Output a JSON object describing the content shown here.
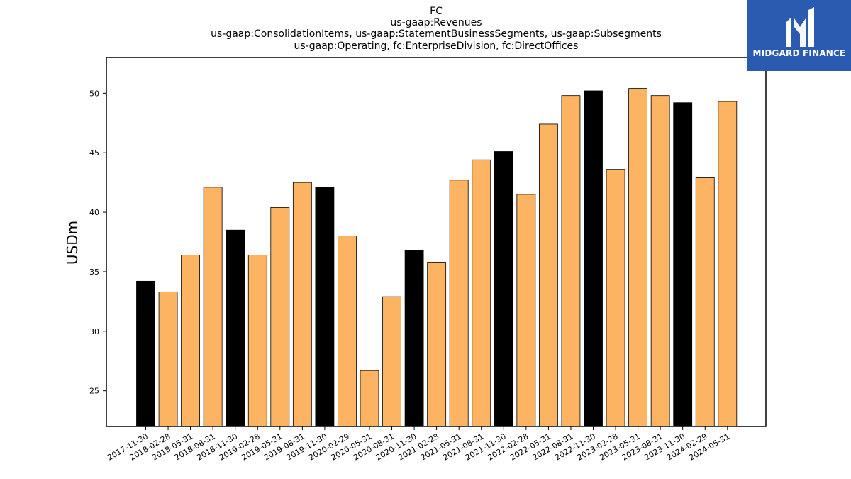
{
  "logo": {
    "text": "MIDGARD FINANCE",
    "color": "#2a5bb0"
  },
  "chart_data": {
    "type": "bar",
    "title_lines": [
      "FC",
      "us-gaap:Revenues",
      "us-gaap:ConsolidationItems, us-gaap:StatementBusinessSegments, us-gaap:Subsegments",
      "us-gaap:Operating, fc:EnterpriseDivision, fc:DirectOffices"
    ],
    "ylabel": "USDm",
    "xlabel": "",
    "ylim": [
      22,
      53
    ],
    "yticks": [
      25,
      30,
      35,
      40,
      45,
      50
    ],
    "categories": [
      "2017-11-30",
      "2018-02-28",
      "2018-05-31",
      "2018-08-31",
      "2018-11-30",
      "2019-02-28",
      "2019-05-31",
      "2019-08-31",
      "2019-11-30",
      "2020-02-29",
      "2020-05-31",
      "2020-08-31",
      "2020-11-30",
      "2021-02-28",
      "2021-05-31",
      "2021-08-31",
      "2021-11-30",
      "2022-02-28",
      "2022-05-31",
      "2022-08-31",
      "2022-11-30",
      "2023-02-28",
      "2023-05-31",
      "2023-08-31",
      "2023-11-30",
      "2024-02-29",
      "2024-05-31"
    ],
    "values": [
      34.2,
      33.3,
      36.4,
      42.1,
      38.5,
      36.4,
      40.4,
      42.5,
      42.1,
      38.0,
      26.7,
      32.9,
      36.8,
      35.8,
      42.7,
      44.4,
      45.1,
      41.5,
      47.4,
      49.8,
      50.2,
      43.6,
      50.4,
      49.8,
      49.2,
      42.9,
      49.3
    ],
    "bar_colors": {
      "year_end": "#000000",
      "quarter": "#fdb462"
    },
    "year_end_flags": [
      true,
      false,
      false,
      false,
      true,
      false,
      false,
      false,
      true,
      false,
      false,
      false,
      true,
      false,
      false,
      false,
      true,
      false,
      false,
      false,
      true,
      false,
      false,
      false,
      true,
      false,
      false
    ],
    "grid": false,
    "legend": "none"
  }
}
